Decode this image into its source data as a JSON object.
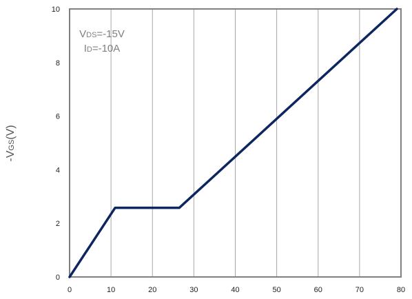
{
  "chart_data": {
    "type": "line",
    "title": "",
    "xlabel": "",
    "ylabel": {
      "prefix": "-V",
      "subscript": "GS",
      "suffix": "(V)"
    },
    "xlim": [
      0,
      80
    ],
    "ylim": [
      0,
      10
    ],
    "xticks": [
      0,
      10,
      20,
      30,
      40,
      50,
      60,
      70,
      80
    ],
    "yticks": [
      0,
      2,
      4,
      6,
      8,
      10
    ],
    "grid": "vertical",
    "colors": {
      "line": "#0d2660",
      "grid": "#a6a6a6",
      "frame": "#808080"
    },
    "annotation": {
      "line1": {
        "main": "V",
        "sub": "DS",
        "rest": "=-15V"
      },
      "line2": {
        "main": "I",
        "sub": "D",
        "rest": "=-10A"
      }
    },
    "series": [
      {
        "x": [
          0,
          11,
          26.5,
          79
        ],
        "y": [
          0,
          2.58,
          2.58,
          10
        ]
      }
    ]
  }
}
